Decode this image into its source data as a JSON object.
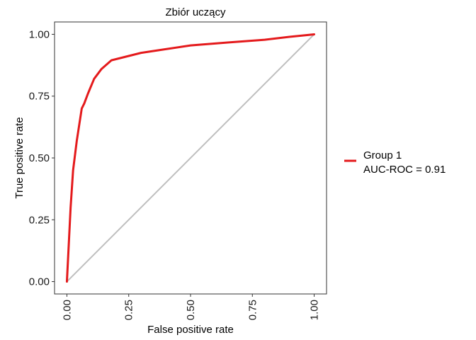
{
  "chart_data": {
    "type": "line",
    "title": "Zbiór uczący",
    "xlabel": "False positive rate",
    "ylabel": "True positive rate",
    "xlim": [
      -0.05,
      1.05
    ],
    "ylim": [
      -0.05,
      1.05
    ],
    "x_ticks": [
      "0.00",
      "0.25",
      "0.50",
      "0.75",
      "1.00"
    ],
    "y_ticks": [
      "0.00",
      "0.25",
      "0.50",
      "0.75",
      "1.00"
    ],
    "grid": false,
    "legend_position": "right",
    "series": [
      {
        "name": "Group 1\n AUC-ROC = 0.91",
        "legend_lines": [
          "Group 1",
          " AUC-ROC = 0.91"
        ],
        "color": "#e41a1c",
        "x": [
          0.0,
          0.005,
          0.015,
          0.025,
          0.04,
          0.06,
          0.07,
          0.085,
          0.11,
          0.14,
          0.18,
          0.22,
          0.3,
          0.4,
          0.5,
          0.65,
          0.8,
          0.9,
          1.0
        ],
        "y": [
          0.0,
          0.1,
          0.3,
          0.45,
          0.57,
          0.7,
          0.72,
          0.76,
          0.82,
          0.86,
          0.895,
          0.905,
          0.925,
          0.94,
          0.955,
          0.967,
          0.978,
          0.99,
          1.0
        ]
      }
    ],
    "reference_line": {
      "x": [
        0,
        1
      ],
      "y": [
        0,
        1
      ],
      "color": "#bebebe"
    }
  }
}
